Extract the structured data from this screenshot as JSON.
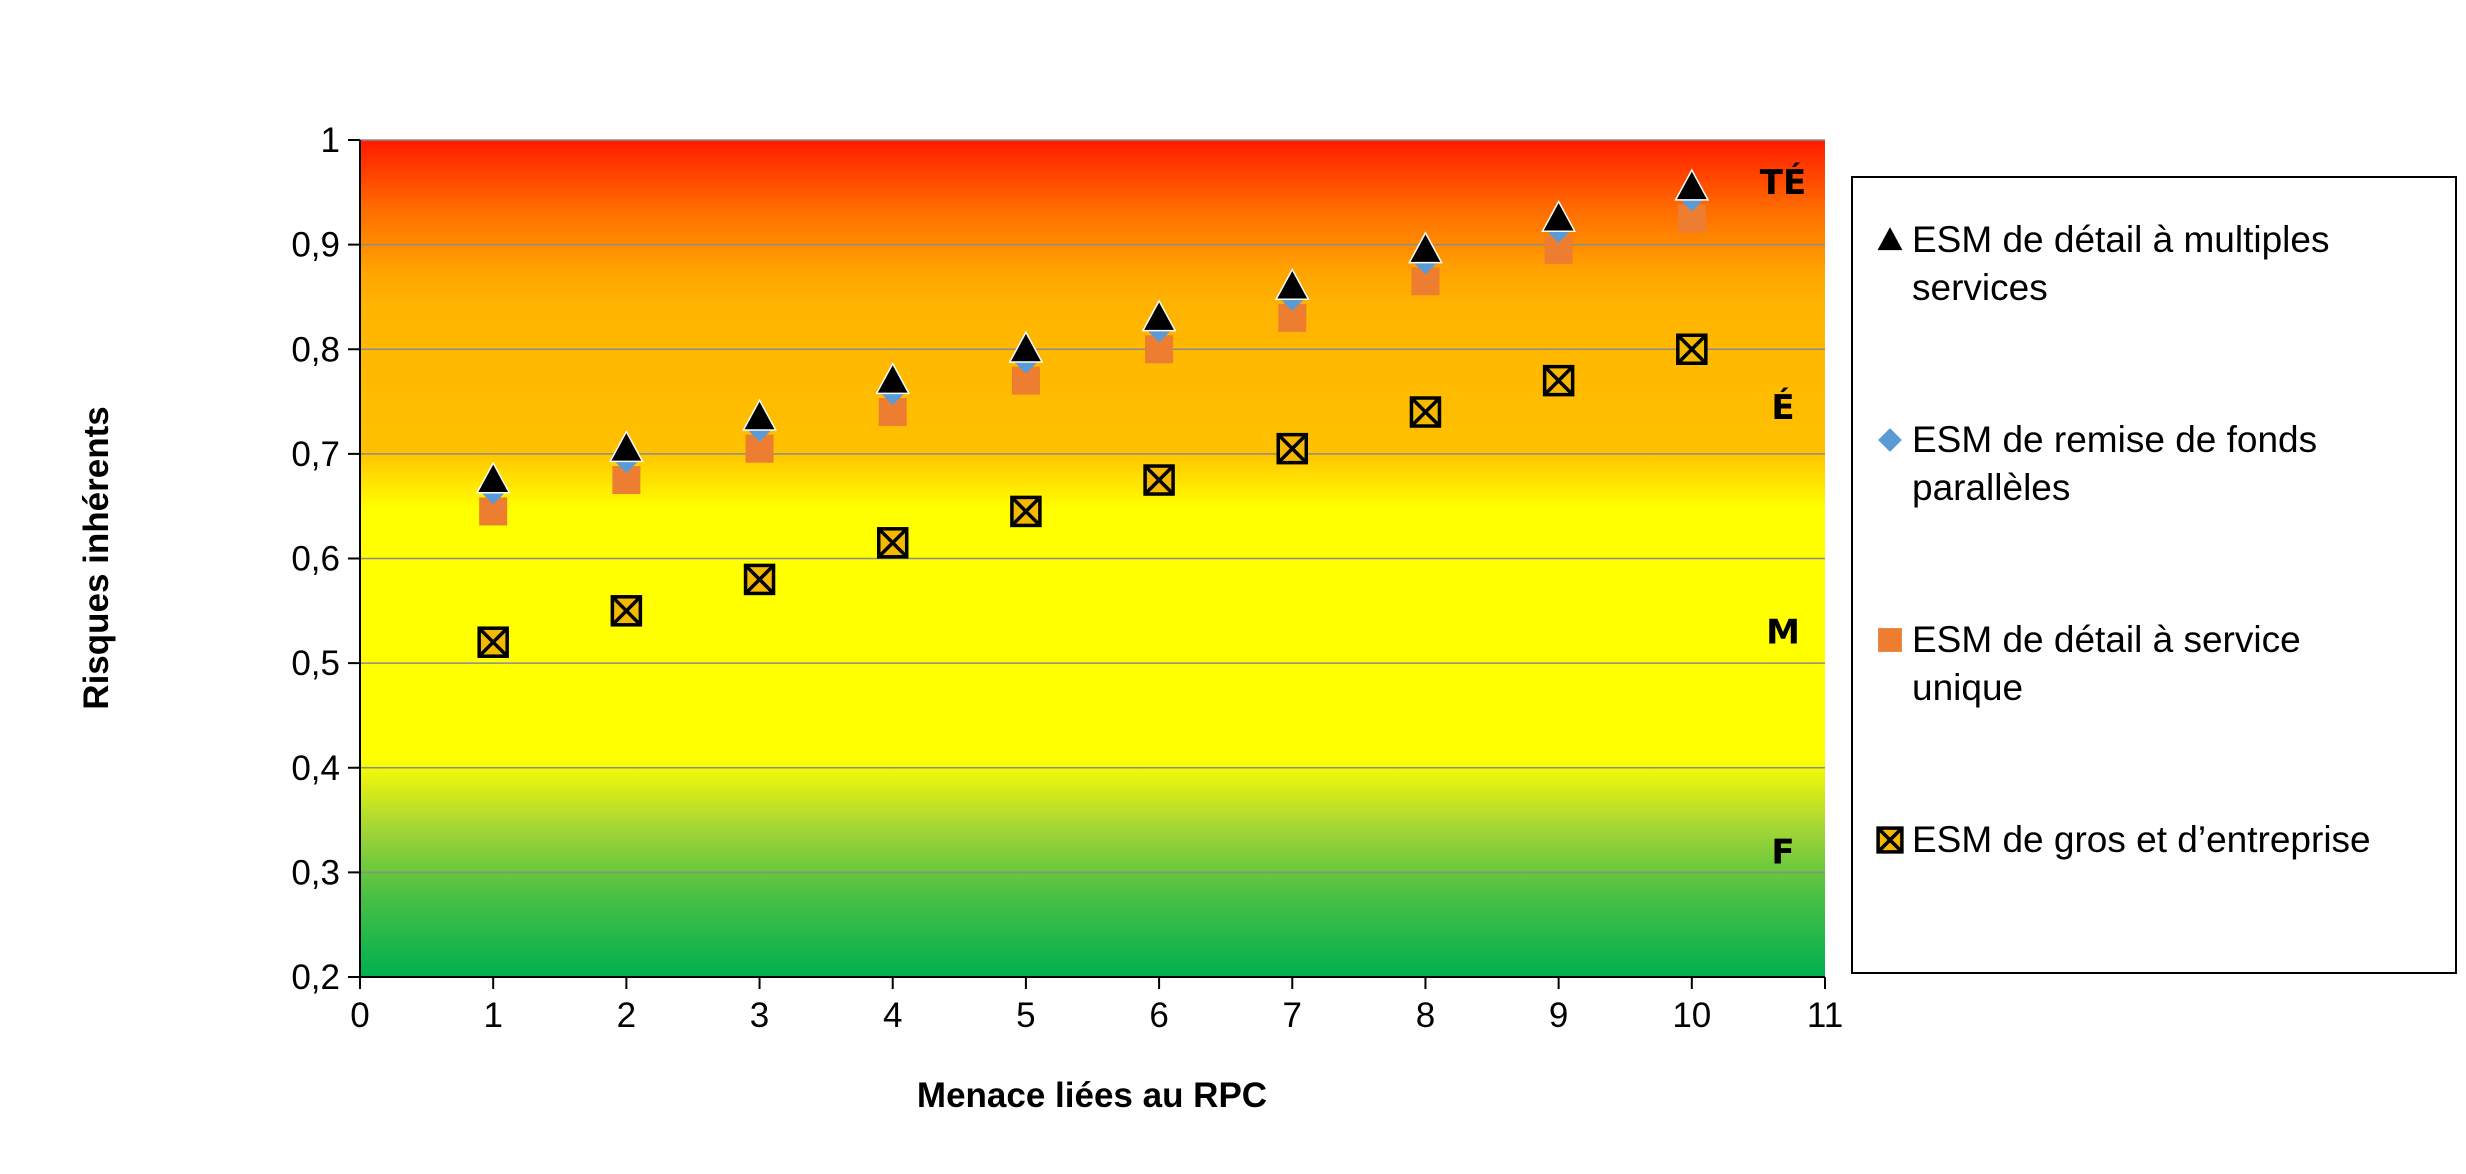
{
  "chart_data": {
    "type": "scatter",
    "xlabel": "Menace liées au RPC",
    "ylabel": "Risques inhérents",
    "xlim": [
      0,
      11
    ],
    "ylim": [
      0.2,
      1
    ],
    "x_ticks": [
      "0",
      "1",
      "2",
      "3",
      "4",
      "5",
      "6",
      "7",
      "8",
      "9",
      "10",
      "11"
    ],
    "y_ticks": [
      "0,2",
      "0,3",
      "0,4",
      "0,5",
      "0,6",
      "0,7",
      "0,8",
      "0,9",
      "1"
    ],
    "grid": true,
    "legend_position": "right",
    "x": [
      1,
      2,
      3,
      4,
      5,
      6,
      7,
      8,
      9,
      10
    ],
    "series": [
      {
        "name": "ESM de détail à multiples services",
        "marker": "triangle",
        "color": "#000000",
        "values": [
          0.675,
          0.705,
          0.735,
          0.77,
          0.8,
          0.83,
          0.86,
          0.895,
          0.925,
          0.955
        ]
      },
      {
        "name": "ESM de remise de fonds parallèles",
        "marker": "diamond",
        "color": "#5b9bd5",
        "values": [
          0.665,
          0.695,
          0.725,
          0.76,
          0.79,
          0.82,
          0.85,
          0.885,
          0.915,
          0.945
        ]
      },
      {
        "name": "ESM de détail à service unique",
        "marker": "square",
        "color": "#ed7d31",
        "values": [
          0.645,
          0.675,
          0.705,
          0.74,
          0.77,
          0.8,
          0.83,
          0.865,
          0.895,
          0.925
        ]
      },
      {
        "name": "ESM de gros et d’entreprise",
        "marker": "boxed-x",
        "color": "#000000",
        "values": [
          0.52,
          0.55,
          0.58,
          0.615,
          0.645,
          0.675,
          0.705,
          0.74,
          0.77,
          0.8
        ]
      }
    ],
    "zones": [
      {
        "label": "TÉ",
        "y": 0.96
      },
      {
        "label": "É",
        "y": 0.745
      },
      {
        "label": "M",
        "y": 0.53
      },
      {
        "label": "F",
        "y": 0.32
      }
    ],
    "background_colors": {
      "top": "#ff0000",
      "orange": "#ffc000",
      "yellow": "#ffff00",
      "bottom": "#00b050"
    }
  }
}
